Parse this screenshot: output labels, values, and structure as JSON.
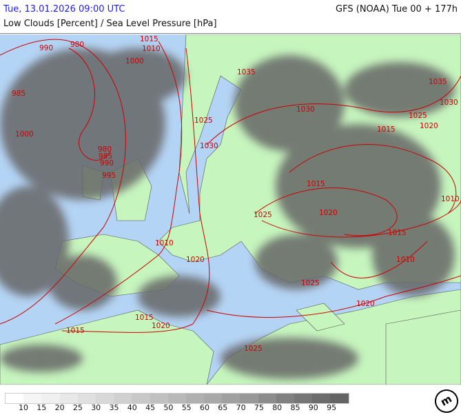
{
  "header": {
    "valid_time": "Tue, 13.01.2026 09:00 UTC",
    "model_run": "GFS (NOAA) Tue 00 + 177h",
    "parameter": "Low Clouds [Percent] / Sea Level Pressure [hPa]"
  },
  "colors": {
    "sea": "#b4d4f5",
    "land": "#c6f5be",
    "isobar": "#cc0000",
    "border": "#555555",
    "title": "#1a1aff"
  },
  "isobar_labels": [
    "990",
    "980",
    "1015",
    "1010",
    "1000",
    "985",
    "980",
    "985",
    "990",
    "995",
    "1000",
    "1035",
    "1025",
    "1030",
    "1030",
    "1015",
    "1025",
    "1020",
    "1015",
    "1035",
    "1030",
    "1010",
    "1020",
    "1025",
    "1015",
    "1010",
    "1010",
    "1020",
    "1025",
    "1020",
    "1015",
    "1020",
    "1015",
    "1025"
  ],
  "legend": {
    "levels": [
      "10",
      "15",
      "20",
      "25",
      "30",
      "35",
      "40",
      "45",
      "50",
      "55",
      "60",
      "65",
      "70",
      "75",
      "80",
      "85",
      "90",
      "95"
    ],
    "colors": [
      "#ffffff",
      "#f5f5f5",
      "#f0f0f0",
      "#e8e8e8",
      "#e0e0e0",
      "#d8d8d8",
      "#d0d0d0",
      "#c8c8c8",
      "#c0c0c0",
      "#b8b8b8",
      "#b0b0b0",
      "#a8a8a8",
      "#a0a0a0",
      "#989898",
      "#8c8c8c",
      "#808080",
      "#767676",
      "#6c6c6c",
      "#646464"
    ]
  },
  "logo": "m"
}
